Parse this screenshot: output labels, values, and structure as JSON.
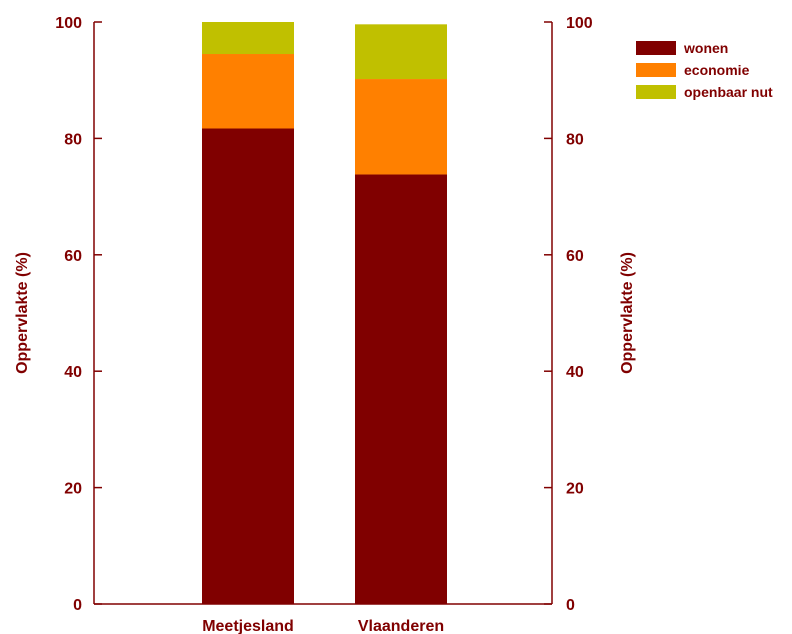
{
  "chart_data": {
    "type": "bar",
    "stacked": true,
    "categories": [
      "Meetjesland",
      "Vlaanderen"
    ],
    "series": [
      {
        "name": "wonen",
        "color": "#800000",
        "values": [
          81.7,
          73.8
        ]
      },
      {
        "name": "economie",
        "color": "#ff8000",
        "values": [
          12.8,
          16.4
        ]
      },
      {
        "name": "openbaar nut",
        "color": "#c0c000",
        "values": [
          5.5,
          9.4
        ]
      }
    ],
    "ylabel": "Oppervlakte (%)",
    "ylabel_right": "Oppervlakte (%)",
    "ylim": [
      0,
      100
    ],
    "yticks": [
      0,
      20,
      40,
      60,
      80,
      100
    ],
    "ytick_labels": [
      "0",
      "20",
      "40",
      "60",
      "80",
      "100"
    ],
    "grid": false,
    "legend_position": "top-right",
    "text_color": "#800000"
  }
}
